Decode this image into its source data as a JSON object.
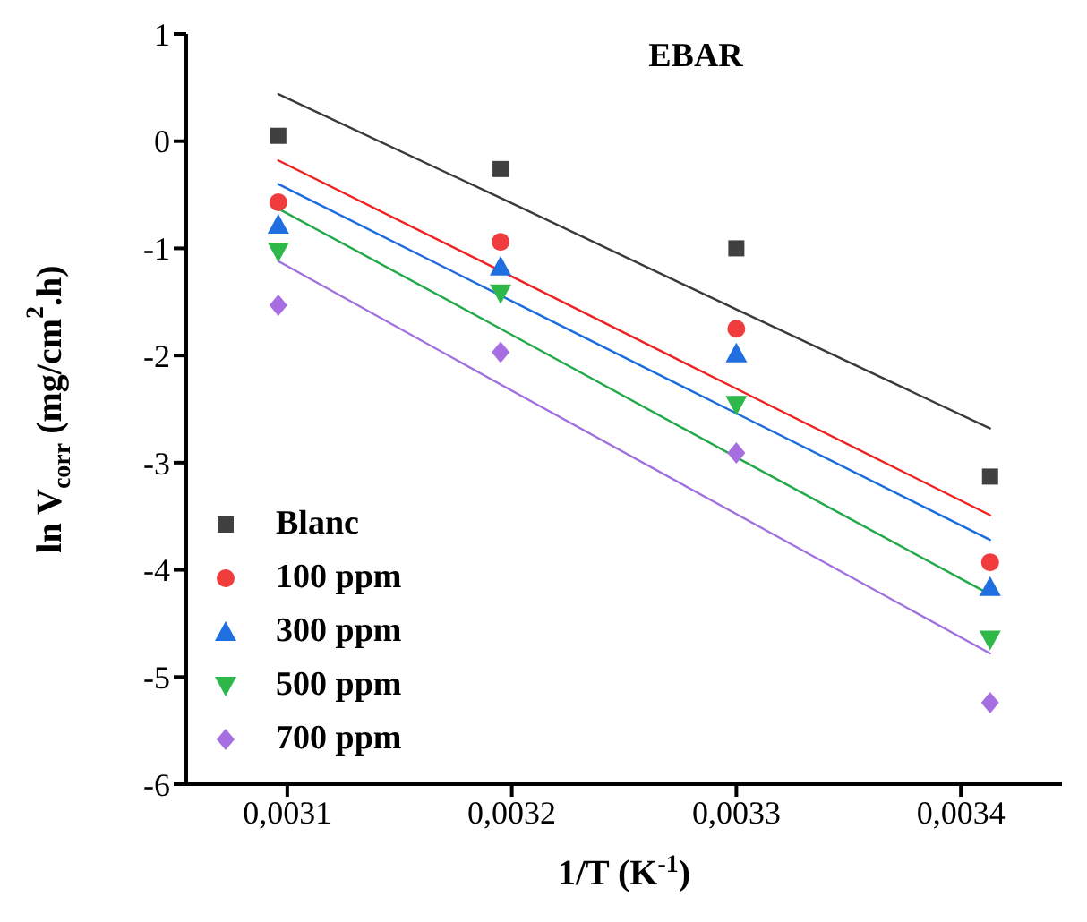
{
  "chart_data": {
    "type": "scatter",
    "title": "EBAR",
    "xlabel": "1/T (K$^{-1}$)",
    "ylabel": "ln V$_{corr}$ (mg/cm$^{2}$.h)",
    "xlim": [
      0.003055,
      0.003445
    ],
    "ylim": [
      -6,
      1
    ],
    "xticks": [
      {
        "value": 0.0031,
        "label": "0,0031"
      },
      {
        "value": 0.0032,
        "label": "0,0032"
      },
      {
        "value": 0.0033,
        "label": "0,0033"
      },
      {
        "value": 0.0034,
        "label": "0,0034"
      }
    ],
    "yticks": [
      -6,
      -5,
      -4,
      -3,
      -2,
      -1,
      0,
      1
    ],
    "legend": "bottom left",
    "x": [
      0.003096,
      0.003195,
      0.0033,
      0.003413
    ],
    "series": [
      {
        "name": "Blanc",
        "marker": "square",
        "color": "#404040",
        "values": [
          0.05,
          -0.26,
          -1.0,
          -3.13
        ]
      },
      {
        "name": "100 ppm",
        "marker": "circle",
        "color": "#f03c3c",
        "values": [
          -0.57,
          -0.94,
          -1.75,
          -3.93
        ]
      },
      {
        "name": "300 ppm",
        "marker": "triangle",
        "color": "#1f6fe0",
        "values": [
          -0.78,
          -1.17,
          -1.98,
          -4.16
        ]
      },
      {
        "name": "500 ppm",
        "marker": "triangle-down",
        "color": "#2eb84a",
        "values": [
          -1.03,
          -1.42,
          -2.46,
          -4.65
        ]
      },
      {
        "name": "700 ppm",
        "marker": "diamond",
        "color": "#a66ee0",
        "values": [
          -1.53,
          -1.97,
          -2.91,
          -5.24
        ]
      },
      {
        "type": "line",
        "color": "#3a3a3a",
        "values": [
          0.44,
          -0.53,
          -1.57,
          -2.68
        ]
      },
      {
        "type": "line",
        "color": "#f02020",
        "values": [
          -0.18,
          -1.21,
          -2.31,
          -3.49
        ]
      },
      {
        "type": "line",
        "color": "#1a6be0",
        "values": [
          -0.4,
          -1.44,
          -2.54,
          -3.72
        ]
      },
      {
        "type": "line",
        "color": "#23a84a",
        "values": [
          -0.63,
          -1.75,
          -2.95,
          -4.23
        ]
      },
      {
        "type": "line",
        "color": "#a070e0",
        "values": [
          -1.12,
          -2.27,
          -3.48,
          -4.78
        ]
      }
    ]
  }
}
